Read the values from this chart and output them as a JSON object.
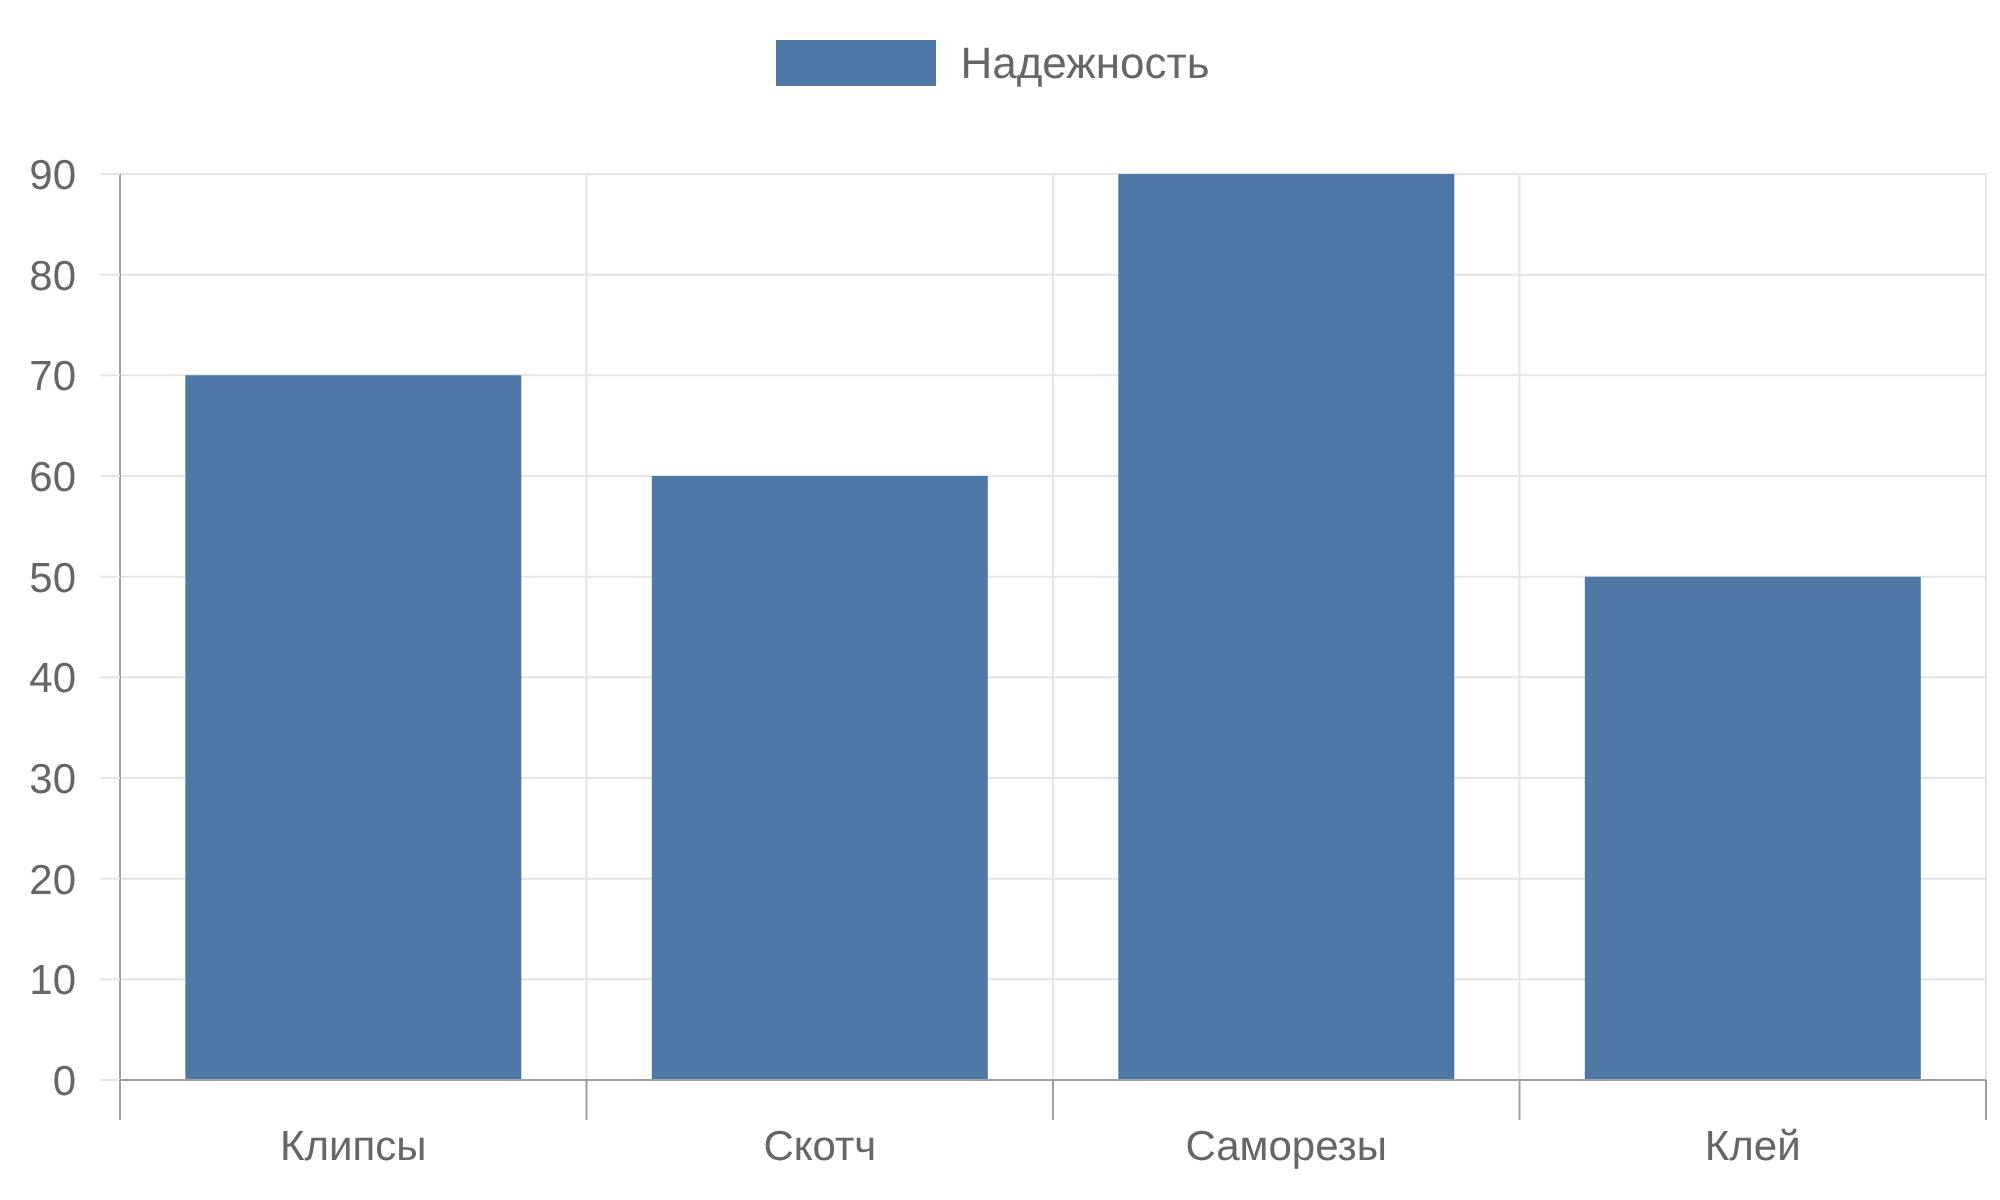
{
  "chart_data": {
    "type": "bar",
    "categories": [
      "Клипсы",
      "Скотч",
      "Саморезы",
      "Клей"
    ],
    "series": [
      {
        "name": "Надежность",
        "color": "#4e79a7",
        "values": [
          70,
          60,
          90,
          50
        ]
      }
    ],
    "ylim": [
      0,
      90
    ],
    "yticks": [
      0,
      10,
      20,
      30,
      40,
      50,
      60,
      70,
      80,
      90
    ],
    "grid": true,
    "legend": "top"
  }
}
